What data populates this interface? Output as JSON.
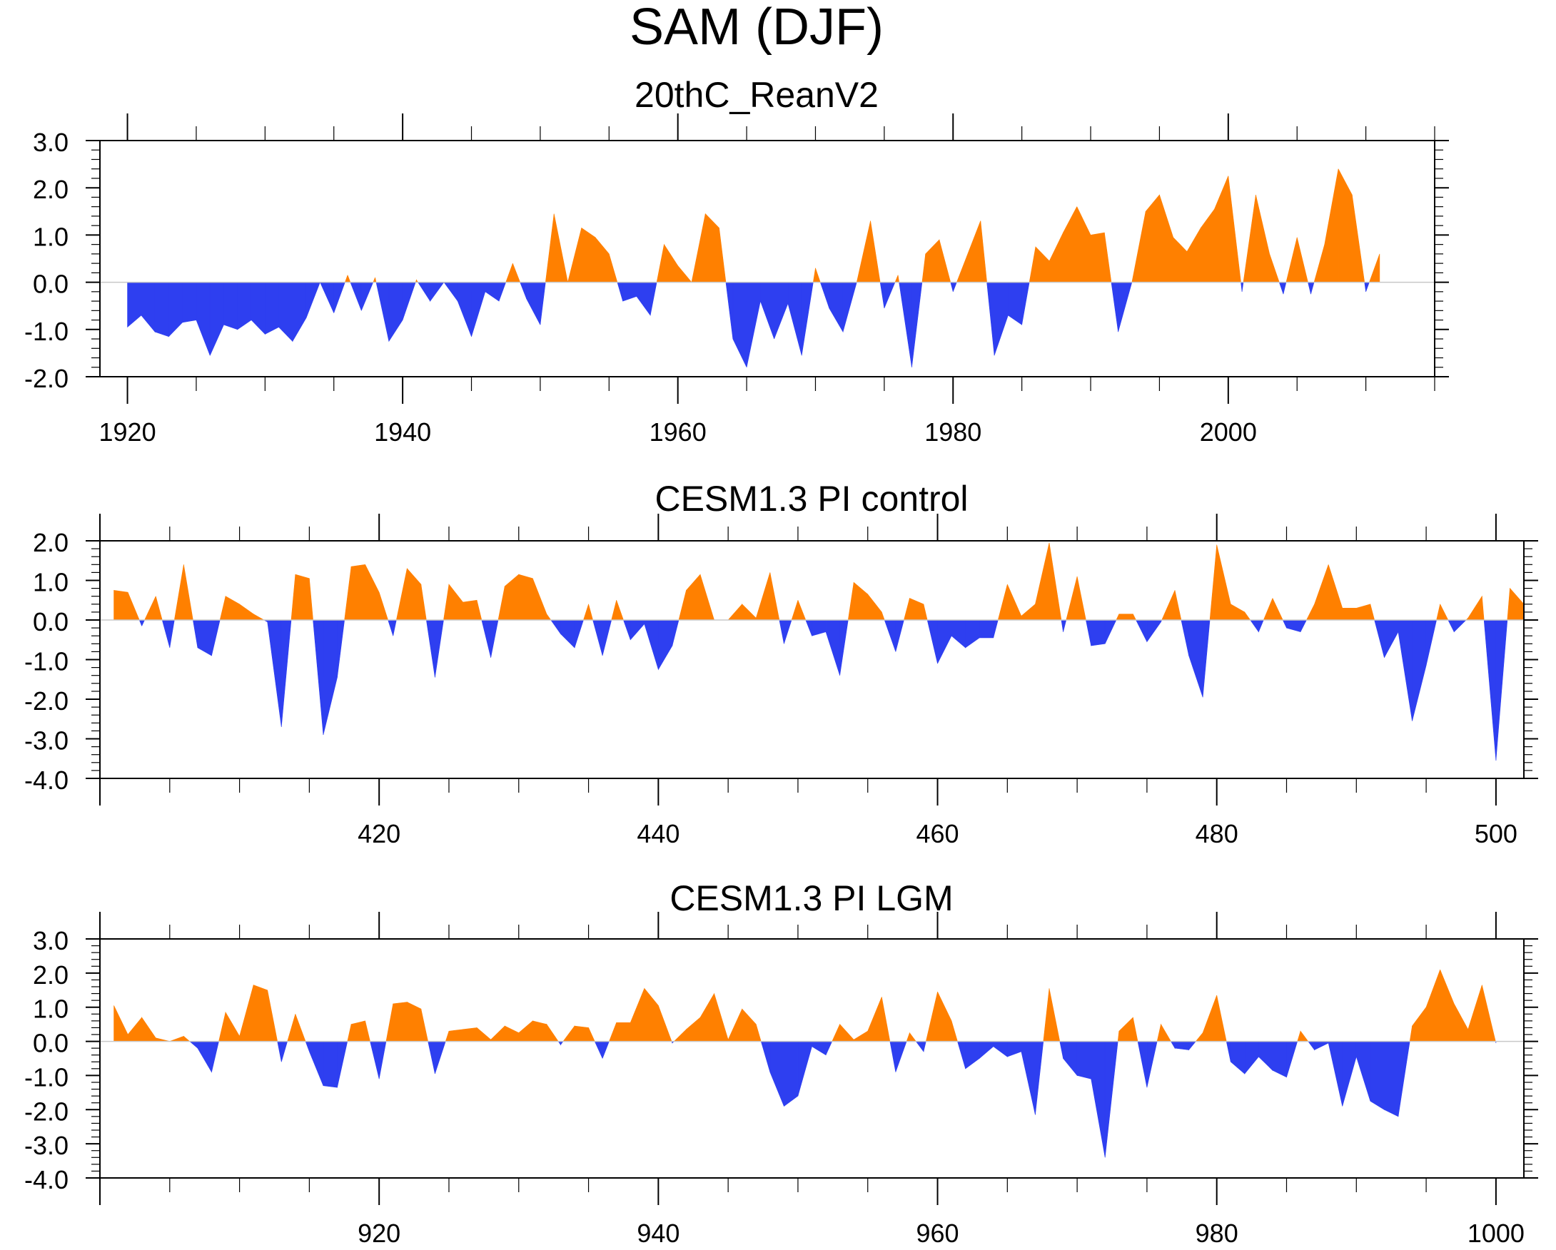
{
  "figure_title": "SAM (DJF)",
  "colors": {
    "positive": "#ff8000",
    "negative": "#2e3ff0",
    "axis": "#000000",
    "zero_line": "#c8c8c8"
  },
  "chart_data": [
    {
      "type": "area",
      "title": "20thC_ReanV2",
      "xlim": [
        1918,
        2015
      ],
      "ylim": [
        -2.0,
        3.0
      ],
      "yticks": [
        -2.0,
        -1.0,
        0.0,
        1.0,
        2.0,
        3.0
      ],
      "ytick_labels": [
        "-2.0",
        "-1.0",
        "0.0",
        "1.0",
        "2.0",
        "3.0"
      ],
      "xticks": [
        1920,
        1940,
        1960,
        1980,
        2000
      ],
      "xtick_labels": [
        "1920",
        "1940",
        "1960",
        "1980",
        "2000"
      ],
      "xminor_step": 5,
      "x_start": 1920,
      "values": [
        -0.95,
        -0.7,
        -1.05,
        -1.15,
        -0.85,
        -0.8,
        -1.55,
        -0.9,
        -1.0,
        -0.8,
        -1.1,
        -0.95,
        -1.25,
        -0.75,
        0.0,
        -0.65,
        0.15,
        -0.6,
        0.1,
        -1.25,
        -0.8,
        0.05,
        -0.4,
        0.0,
        -0.4,
        -1.15,
        -0.2,
        -0.4,
        0.4,
        -0.35,
        -0.9,
        1.45,
        0.0,
        1.15,
        0.95,
        0.6,
        -0.4,
        -0.3,
        -0.7,
        0.8,
        0.35,
        0.0,
        1.45,
        1.15,
        -1.2,
        -1.8,
        -0.4,
        -1.2,
        -0.45,
        -1.55,
        0.3,
        -0.55,
        -1.05,
        0.0,
        1.3,
        -0.55,
        0.15,
        -1.8,
        0.6,
        0.9,
        -0.2,
        0.55,
        1.3,
        -1.55,
        -0.7,
        -0.9,
        0.75,
        0.45,
        1.05,
        1.6,
        1.0,
        1.05,
        -1.05,
        0.0,
        1.5,
        1.85,
        0.95,
        0.65,
        1.15,
        1.55,
        2.25,
        -0.2,
        1.85,
        0.6,
        -0.25,
        0.95,
        -0.25,
        0.8,
        2.4,
        1.85,
        -0.2,
        0.6
      ]
    },
    {
      "type": "area",
      "title": "CESM1.3 PI control",
      "xlim": [
        400,
        502
      ],
      "ylim": [
        -4.0,
        2.0
      ],
      "yticks": [
        -4.0,
        -3.0,
        -2.0,
        -1.0,
        0.0,
        1.0,
        2.0
      ],
      "ytick_labels": [
        "-4.0",
        "-3.0",
        "-2.0",
        "-1.0",
        "0.0",
        "1.0",
        "2.0"
      ],
      "xticks": [
        420,
        440,
        460,
        480,
        500
      ],
      "xtick_labels": [
        "420",
        "440",
        "460",
        "480",
        "500"
      ],
      "xminor_step": 5,
      "x_start": 401,
      "values": [
        0.75,
        0.7,
        -0.15,
        0.6,
        -0.7,
        1.4,
        -0.7,
        -0.9,
        0.6,
        0.4,
        0.15,
        -0.05,
        -2.7,
        1.15,
        1.05,
        -2.9,
        -1.45,
        1.35,
        1.4,
        0.7,
        -0.4,
        1.3,
        0.9,
        -1.45,
        0.9,
        0.45,
        0.5,
        -0.95,
        0.85,
        1.15,
        1.05,
        0.15,
        -0.35,
        -0.7,
        0.4,
        -0.9,
        0.5,
        -0.5,
        -0.1,
        -1.25,
        -0.65,
        0.75,
        1.15,
        0.0,
        0.0,
        0.4,
        0.05,
        1.2,
        -0.6,
        0.5,
        -0.4,
        -0.3,
        -1.4,
        0.95,
        0.65,
        0.2,
        -0.8,
        0.55,
        0.4,
        -1.1,
        -0.4,
        -0.7,
        -0.45,
        -0.45,
        0.9,
        0.1,
        0.4,
        1.95,
        -0.3,
        1.1,
        -0.65,
        -0.6,
        0.15,
        0.15,
        -0.55,
        -0.05,
        0.75,
        -0.9,
        -1.95,
        1.9,
        0.4,
        0.2,
        -0.3,
        0.55,
        -0.2,
        -0.3,
        0.4,
        1.4,
        0.3,
        0.3,
        0.4,
        -0.95,
        -0.3,
        -2.55,
        -1.15,
        0.4,
        -0.3,
        0.05,
        0.6,
        -3.55,
        0.8,
        0.4
      ]
    },
    {
      "type": "area",
      "title": "CESM1.3 PI LGM",
      "xlim": [
        900,
        1002
      ],
      "ylim": [
        -4.0,
        3.0
      ],
      "yticks": [
        -4.0,
        -3.0,
        -2.0,
        -1.0,
        0.0,
        1.0,
        2.0,
        3.0
      ],
      "ytick_labels": [
        "-4.0",
        "-3.0",
        "-2.0",
        "-1.0",
        "0.0",
        "1.0",
        "2.0",
        "3.0"
      ],
      "xticks": [
        920,
        940,
        960,
        980,
        1000
      ],
      "xtick_labels": [
        "920",
        "940",
        "960",
        "980",
        "1000"
      ],
      "xminor_step": 5,
      "x_start": 901,
      "values": [
        1.05,
        0.2,
        0.7,
        0.1,
        0.0,
        0.15,
        -0.2,
        -0.9,
        0.85,
        0.15,
        1.65,
        1.5,
        -0.6,
        0.8,
        -0.3,
        -1.3,
        -1.35,
        0.5,
        0.6,
        -1.1,
        1.1,
        1.15,
        0.95,
        -0.95,
        0.3,
        0.35,
        0.4,
        0.05,
        0.45,
        0.25,
        0.6,
        0.5,
        -0.1,
        0.45,
        0.4,
        -0.5,
        0.55,
        0.55,
        1.55,
        1.05,
        -0.05,
        0.35,
        0.7,
        1.4,
        0.05,
        0.95,
        0.5,
        -0.9,
        -1.9,
        -1.6,
        -0.15,
        -0.4,
        0.5,
        0.05,
        0.3,
        1.3,
        -0.9,
        0.25,
        -0.3,
        1.45,
        0.6,
        -0.8,
        -0.5,
        -0.15,
        -0.45,
        -0.3,
        -2.15,
        1.55,
        -0.5,
        -1.0,
        -1.1,
        -3.4,
        0.3,
        0.7,
        -1.35,
        0.5,
        -0.2,
        -0.25,
        0.25,
        1.35,
        -0.6,
        -0.95,
        -0.45,
        -0.85,
        -1.05,
        0.3,
        -0.25,
        -0.05,
        -1.9,
        -0.45,
        -1.75,
        -2.0,
        -2.2,
        0.45,
        1.0,
        2.1,
        1.1,
        0.35,
        1.65,
        -0.05
      ]
    }
  ]
}
